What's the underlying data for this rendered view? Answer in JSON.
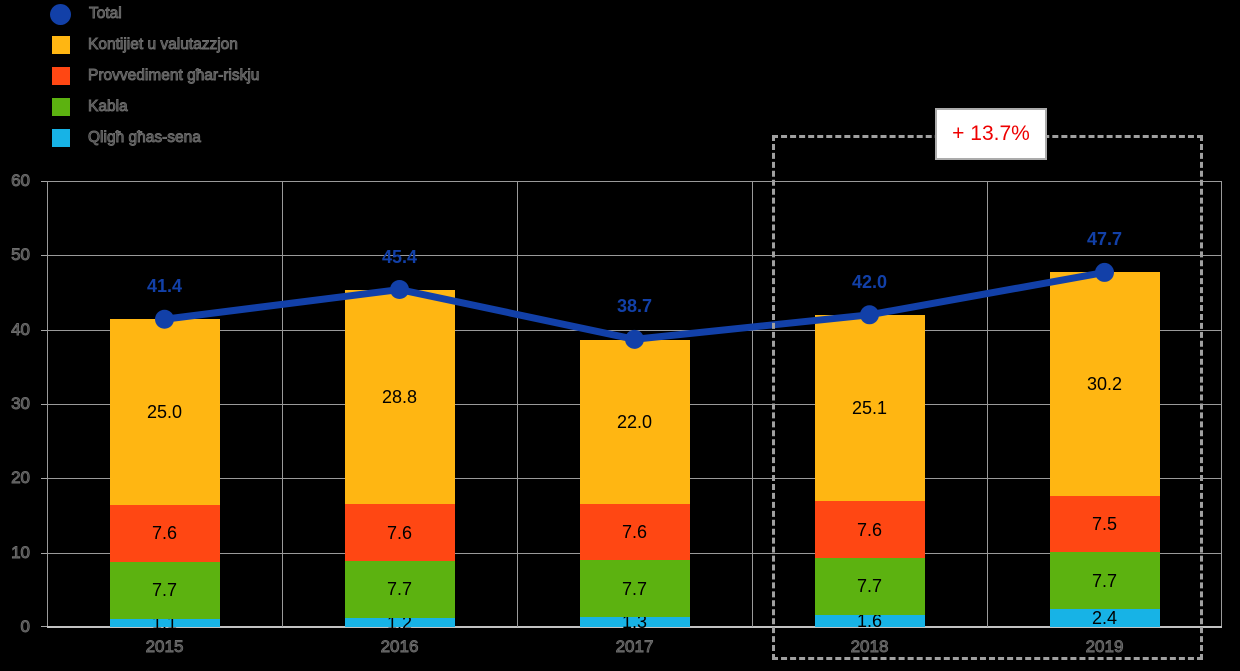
{
  "legend": {
    "items": [
      {
        "label": "Total",
        "marker": "circle",
        "color": "#1240A8"
      },
      {
        "label": "Kontijiet u valutazzjon",
        "marker": "square",
        "color": "#FFB612"
      },
      {
        "label": "Provvediment għar-riskju",
        "marker": "square",
        "color": "#FF4713"
      },
      {
        "label": "Kabla",
        "marker": "square",
        "color": "#5CB210"
      },
      {
        "label": "Qligħ għas-sena",
        "marker": "square",
        "color": "#17B3E6"
      }
    ]
  },
  "chart_data": {
    "type": "bar",
    "stacked": true,
    "title": "",
    "xlabel": "",
    "ylabel": "",
    "categories": [
      "2015",
      "2016",
      "2017",
      "2018",
      "2019"
    ],
    "series": [
      {
        "name": "Qligħ għas-sena",
        "color": "#17B3E6",
        "values": [
          1.1,
          1.2,
          1.3,
          1.6,
          2.4
        ]
      },
      {
        "name": "Kabla",
        "color": "#5CB210",
        "values": [
          7.7,
          7.7,
          7.7,
          7.7,
          7.7
        ]
      },
      {
        "name": "Provvediment għar-riskju",
        "color": "#FF4713",
        "values": [
          7.6,
          7.6,
          7.6,
          7.6,
          7.5
        ]
      },
      {
        "name": "Kontijiet u valutazzjon",
        "color": "#FFB612",
        "values": [
          25.0,
          28.8,
          22.0,
          25.1,
          30.2
        ]
      }
    ],
    "line_series": {
      "name": "Total",
      "color": "#1240A8",
      "values": [
        41.4,
        45.4,
        38.7,
        42.0,
        47.7
      ]
    },
    "ylim": [
      0,
      60
    ],
    "yticks": [
      0,
      10,
      20,
      30,
      40,
      50,
      60
    ],
    "grid": true,
    "legend_position": "top-left",
    "highlight": {
      "label": "+ 13.7%",
      "label_color": "#EE0000",
      "categories": [
        "2018",
        "2019"
      ]
    }
  }
}
